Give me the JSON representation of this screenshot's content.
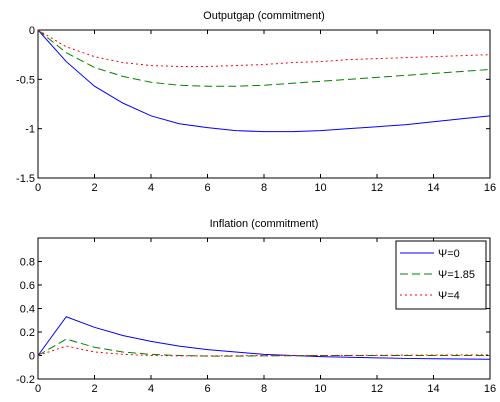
{
  "chart_data": [
    {
      "type": "line",
      "title": "Outputgap (commitment)",
      "xlim": [
        0,
        16
      ],
      "ylim": [
        -1.5,
        0
      ],
      "xticks": [
        0,
        2,
        4,
        6,
        8,
        10,
        12,
        14,
        16
      ],
      "yticks": [
        0,
        -0.5,
        -1,
        -1.5
      ],
      "ytick_labels": [
        "0",
        "-0.5",
        "-1",
        "-1.5"
      ],
      "grid": false,
      "x": [
        0,
        1,
        2,
        3,
        4,
        5,
        6,
        7,
        8,
        9,
        10,
        11,
        12,
        13,
        14,
        15,
        16
      ],
      "series": [
        {
          "name": "Ψ=0",
          "color": "#0000ff",
          "dash": "solid",
          "values": [
            0,
            -0.32,
            -0.57,
            -0.74,
            -0.87,
            -0.95,
            -0.99,
            -1.02,
            -1.03,
            -1.03,
            -1.02,
            -1.0,
            -0.98,
            -0.96,
            -0.93,
            -0.9,
            -0.87
          ]
        },
        {
          "name": "Ψ=1.85",
          "color": "#007f00",
          "dash": "dashed",
          "values": [
            0,
            -0.23,
            -0.38,
            -0.47,
            -0.53,
            -0.56,
            -0.57,
            -0.57,
            -0.56,
            -0.54,
            -0.52,
            -0.5,
            -0.48,
            -0.46,
            -0.44,
            -0.42,
            -0.4
          ]
        },
        {
          "name": "Ψ=4",
          "color": "#ff0000",
          "dash": "dotted",
          "values": [
            0,
            -0.17,
            -0.27,
            -0.33,
            -0.36,
            -0.37,
            -0.37,
            -0.36,
            -0.35,
            -0.33,
            -0.32,
            -0.3,
            -0.29,
            -0.28,
            -0.27,
            -0.26,
            -0.25
          ]
        }
      ]
    },
    {
      "type": "line",
      "title": "Inflation (commitment)",
      "xlim": [
        0,
        16
      ],
      "ylim": [
        -0.2,
        1.0
      ],
      "xticks": [
        0,
        2,
        4,
        6,
        8,
        10,
        12,
        14,
        16
      ],
      "yticks": [
        -0.2,
        0,
        0.2,
        0.4,
        0.6,
        0.8
      ],
      "ytick_labels": [
        "-0.2",
        "0",
        "0.2",
        "0.4",
        "0.6",
        "0.8"
      ],
      "grid": false,
      "legend_position": "top-right",
      "x": [
        0,
        1,
        2,
        3,
        4,
        5,
        6,
        7,
        8,
        9,
        10,
        11,
        12,
        13,
        14,
        15,
        16
      ],
      "series": [
        {
          "name": "Ψ=0",
          "color": "#0000ff",
          "dash": "solid",
          "values": [
            0,
            0.33,
            0.24,
            0.17,
            0.12,
            0.08,
            0.05,
            0.03,
            0.01,
            0.0,
            -0.01,
            -0.015,
            -0.02,
            -0.025,
            -0.028,
            -0.03,
            -0.032
          ]
        },
        {
          "name": "Ψ=1.85",
          "color": "#007f00",
          "dash": "dashed",
          "values": [
            0,
            0.14,
            0.07,
            0.03,
            0.01,
            0.0,
            -0.005,
            -0.005,
            -0.003,
            -0.002,
            0.0,
            0.0,
            0.0,
            0.0,
            0.0,
            0.0,
            0.0
          ]
        },
        {
          "name": "Ψ=4",
          "color": "#ff0000",
          "dash": "dotted",
          "values": [
            0,
            0.08,
            0.03,
            0.01,
            0.0,
            -0.003,
            -0.003,
            -0.002,
            -0.001,
            0.0,
            0.0,
            0.001,
            0.002,
            0.003,
            0.004,
            0.005,
            0.006
          ]
        }
      ]
    }
  ]
}
